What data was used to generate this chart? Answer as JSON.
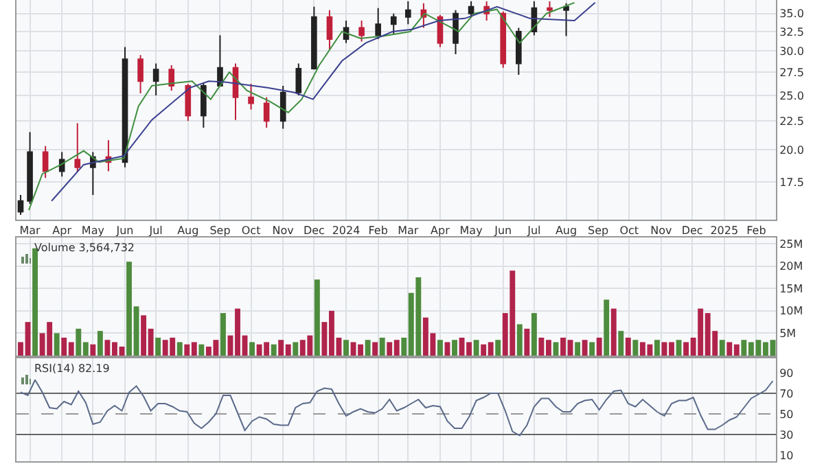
{
  "chart_data": [
    {
      "type": "candlestick",
      "xlim": [
        "2023-02-16",
        "2025-02-20"
      ],
      "ylim": [
        15.0,
        37.0
      ],
      "log": "y",
      "grid": true,
      "xticks": [
        {
          "value": "2023-03-01",
          "label": "Mar"
        },
        {
          "value": "2023-04-01",
          "label": "Apr"
        },
        {
          "value": "2023-05-01",
          "label": "May"
        },
        {
          "value": "2023-06-01",
          "label": "Jun"
        },
        {
          "value": "2023-07-01",
          "label": "Jul"
        },
        {
          "value": "2023-08-01",
          "label": "Aug"
        },
        {
          "value": "2023-09-01",
          "label": "Sep"
        },
        {
          "value": "2023-10-01",
          "label": "Oct"
        },
        {
          "value": "2023-11-01",
          "label": "Nov"
        },
        {
          "value": "2023-12-01",
          "label": "Dec"
        },
        {
          "value": "2024-01-01",
          "label": "2024"
        },
        {
          "value": "2024-02-01",
          "label": "Feb"
        },
        {
          "value": "2024-03-01",
          "label": "Mar"
        },
        {
          "value": "2024-04-01",
          "label": "Apr"
        },
        {
          "value": "2024-05-01",
          "label": "May"
        },
        {
          "value": "2024-06-01",
          "label": "Jun"
        },
        {
          "value": "2024-07-01",
          "label": "Jul"
        },
        {
          "value": "2024-08-01",
          "label": "Aug"
        },
        {
          "value": "2024-09-01",
          "label": "Sep"
        },
        {
          "value": "2024-10-01",
          "label": "Oct"
        },
        {
          "value": "2024-11-01",
          "label": "Nov"
        },
        {
          "value": "2024-12-01",
          "label": "Dec"
        },
        {
          "value": "2025-01-01",
          "label": "2025"
        },
        {
          "value": "2025-02-01",
          "label": "Feb"
        }
      ],
      "yticks": [
        {
          "value": 17.5,
          "label": "17.5"
        },
        {
          "value": 20,
          "label": "20.0"
        },
        {
          "value": 22.5,
          "label": "22.5"
        },
        {
          "value": 25,
          "label": "25.0"
        },
        {
          "value": 27.5,
          "label": "27.5"
        },
        {
          "value": 30,
          "label": "30.0"
        },
        {
          "value": 32.5,
          "label": "32.5"
        },
        {
          "value": 35,
          "label": "35.0"
        }
      ],
      "x": [
        "2023-02-20",
        "2023-03-01",
        "2023-03-16",
        "2023-04-01",
        "2023-04-16",
        "2023-05-01",
        "2023-05-16",
        "2023-06-01",
        "2023-06-16",
        "2023-07-01",
        "2023-07-16",
        "2023-08-01",
        "2023-08-16",
        "2023-09-01",
        "2023-09-16",
        "2023-10-01",
        "2023-10-16",
        "2023-11-01",
        "2023-11-16",
        "2023-12-01",
        "2023-12-16",
        "2024-01-01",
        "2024-01-16",
        "2024-02-01",
        "2024-02-16",
        "2024-03-01",
        "2024-03-16",
        "2024-04-01",
        "2024-04-16",
        "2024-05-01",
        "2024-05-16",
        "2024-06-01",
        "2024-06-16",
        "2024-07-01",
        "2024-07-16",
        "2024-08-01"
      ],
      "ohlc": [
        [
          15.5,
          16.6,
          15.3,
          16.2
        ],
        [
          16.2,
          21.5,
          16.0,
          19.8
        ],
        [
          19.8,
          20.3,
          17.8,
          18.3
        ],
        [
          18.3,
          19.8,
          17.9,
          19.2
        ],
        [
          19.2,
          22.3,
          18.3,
          18.6
        ],
        [
          18.6,
          19.8,
          16.6,
          19.4
        ],
        [
          19.4,
          20.8,
          18.3,
          19.0
        ],
        [
          19.0,
          30.5,
          18.6,
          29.0
        ],
        [
          29.0,
          29.5,
          25.2,
          26.5
        ],
        [
          26.5,
          28.5,
          25.0,
          27.8
        ],
        [
          27.8,
          28.3,
          25.5,
          26.0
        ],
        [
          26.0,
          26.2,
          22.5,
          23.0
        ],
        [
          23.0,
          26.3,
          21.9,
          26.0
        ],
        [
          26.0,
          32.0,
          26.0,
          28.0
        ],
        [
          28.0,
          28.5,
          22.6,
          24.8
        ],
        [
          24.8,
          26.2,
          23.6,
          24.2
        ],
        [
          24.2,
          24.8,
          21.9,
          22.5
        ],
        [
          22.5,
          26.0,
          21.8,
          25.3
        ],
        [
          25.3,
          28.5,
          25.0,
          27.9
        ],
        [
          27.9,
          36.0,
          27.8,
          34.5
        ],
        [
          34.5,
          35.5,
          30.2,
          31.5
        ],
        [
          31.5,
          34.0,
          31.0,
          33.0
        ],
        [
          33.0,
          34.0,
          31.2,
          32.0
        ],
        [
          32.0,
          35.8,
          31.5,
          33.5
        ],
        [
          33.5,
          35.0,
          32.2,
          34.5
        ],
        [
          34.5,
          36.8,
          33.5,
          35.5
        ],
        [
          35.5,
          36.5,
          33.0,
          34.5
        ],
        [
          34.5,
          34.8,
          30.5,
          31.0
        ],
        [
          31.0,
          35.5,
          29.6,
          35.0
        ],
        [
          35.0,
          36.8,
          34.5,
          36.0
        ],
        [
          36.0,
          36.8,
          34.0,
          35.0
        ],
        [
          35.0,
          35.3,
          28.0,
          28.5
        ],
        [
          28.5,
          33.0,
          27.2,
          32.5
        ],
        [
          32.5,
          36.8,
          32.0,
          35.8
        ],
        [
          35.8,
          36.8,
          34.5,
          35.5
        ],
        [
          35.5,
          36.5,
          31.9,
          36.0
        ]
      ],
      "colors": [
        "#222222",
        "#222222",
        "#c0203a",
        "#222222",
        "#c0203a",
        "#222222",
        "#c0203a",
        "#222222",
        "#c0203a",
        "#222222",
        "#c0203a",
        "#c0203a",
        "#222222",
        "#222222",
        "#c0203a",
        "#c0203a",
        "#c0203a",
        "#222222",
        "#222222",
        "#222222",
        "#c0203a",
        "#222222",
        "#c0203a",
        "#222222",
        "#222222",
        "#222222",
        "#c0203a",
        "#c0203a",
        "#222222",
        "#222222",
        "#c0203a",
        "#c0203a",
        "#222222",
        "#222222",
        "#c0203a",
        "#222222"
      ],
      "series": [
        {
          "type": "line",
          "color": "#3f8f3f",
          "x": [
            "2023-02-28",
            "2023-03-13",
            "2023-03-31",
            "2023-04-22",
            "2023-05-07",
            "2023-05-31",
            "2023-06-14",
            "2023-06-27",
            "2023-07-19",
            "2023-08-05",
            "2023-08-23",
            "2023-09-10",
            "2023-09-27",
            "2023-10-19",
            "2023-11-06",
            "2023-11-19",
            "2023-12-06",
            "2023-12-28",
            "2024-01-15",
            "2024-02-06",
            "2024-03-03",
            "2024-03-17",
            "2024-04-19",
            "2024-05-04",
            "2024-05-26",
            "2024-06-17",
            "2024-07-13",
            "2024-08-09"
          ],
          "values": [
            15.6,
            18.1,
            18.8,
            19.9,
            19.0,
            19.3,
            23.9,
            26.0,
            26.3,
            26.5,
            24.6,
            27.5,
            25.5,
            24.4,
            23.3,
            24.6,
            28.3,
            32.5,
            31.6,
            31.9,
            32.5,
            35.0,
            32.5,
            35.0,
            35.6,
            31.0,
            35.0,
            36.6
          ]
        },
        {
          "type": "line",
          "color": "#3a3f8f",
          "x": [
            "2023-03-22",
            "2023-04-22",
            "2023-05-31",
            "2023-06-27",
            "2023-08-03",
            "2023-08-21",
            "2023-09-07",
            "2023-10-17",
            "2023-11-12",
            "2023-11-30",
            "2023-12-28",
            "2024-01-20",
            "2024-02-15",
            "2024-03-05",
            "2024-03-31",
            "2024-04-25",
            "2024-05-26",
            "2024-06-27",
            "2024-08-09",
            "2024-08-29"
          ],
          "values": [
            16.2,
            18.8,
            19.5,
            22.6,
            25.8,
            26.5,
            26.4,
            25.8,
            25.3,
            24.6,
            28.8,
            31.0,
            32.5,
            32.8,
            34.0,
            34.3,
            36.0,
            34.3,
            34.0,
            36.6
          ]
        }
      ]
    },
    {
      "type": "bar",
      "xlim": [
        "2023-02-16",
        "2025-02-20"
      ],
      "ylim": [
        0,
        26.4
      ],
      "grid": true,
      "tick_labels": "y",
      "annotations": [
        "Volume 3,564,732"
      ],
      "xticks": [
        {
          "value": "2023-03-01",
          "label": null
        },
        {
          "value": "2023-04-01",
          "label": null
        },
        {
          "value": "2023-05-01",
          "label": null
        },
        {
          "value": "2023-06-01",
          "label": null
        },
        {
          "value": "2023-07-01",
          "label": null
        },
        {
          "value": "2023-08-01",
          "label": null
        },
        {
          "value": "2023-09-01",
          "label": null
        },
        {
          "value": "2023-10-01",
          "label": null
        },
        {
          "value": "2023-11-01",
          "label": null
        },
        {
          "value": "2023-12-01",
          "label": null
        },
        {
          "value": "2024-01-01",
          "label": null
        },
        {
          "value": "2024-02-01",
          "label": null
        },
        {
          "value": "2024-03-01",
          "label": null
        },
        {
          "value": "2024-04-01",
          "label": null
        },
        {
          "value": "2024-05-01",
          "label": null
        },
        {
          "value": "2024-06-01",
          "label": null
        },
        {
          "value": "2024-07-01",
          "label": null
        },
        {
          "value": "2024-08-01",
          "label": null
        },
        {
          "value": "2024-09-01",
          "label": null
        },
        {
          "value": "2024-10-01",
          "label": null
        },
        {
          "value": "2024-11-01",
          "label": null
        },
        {
          "value": "2024-12-01",
          "label": null
        },
        {
          "value": "2025-01-01",
          "label": null
        },
        {
          "value": "2025-02-01",
          "label": null
        }
      ],
      "yticks": [
        {
          "value": 5,
          "label": "5M"
        },
        {
          "value": 10,
          "label": "10M"
        },
        {
          "value": 15,
          "label": "15M"
        },
        {
          "value": 20,
          "label": "20M"
        },
        {
          "value": 25,
          "label": "25M"
        }
      ],
      "x": [
        "2023-02-20",
        "2023-02-27",
        "2023-03-06",
        "2023-03-13",
        "2023-03-20",
        "2023-03-27",
        "2023-04-03",
        "2023-04-10",
        "2023-04-17",
        "2023-04-24",
        "2023-05-01",
        "2023-05-08",
        "2023-05-15",
        "2023-05-22",
        "2023-05-29",
        "2023-06-05",
        "2023-06-12",
        "2023-06-19",
        "2023-06-26",
        "2023-07-03",
        "2023-07-10",
        "2023-07-17",
        "2023-07-24",
        "2023-07-31",
        "2023-08-07",
        "2023-08-14",
        "2023-08-21",
        "2023-08-28",
        "2023-09-04",
        "2023-09-11",
        "2023-09-18",
        "2023-09-25",
        "2023-10-02",
        "2023-10-09",
        "2023-10-16",
        "2023-10-23",
        "2023-10-30",
        "2023-11-06",
        "2023-11-13",
        "2023-11-20",
        "2023-11-27",
        "2023-12-04",
        "2023-12-11",
        "2023-12-18",
        "2023-12-25",
        "2024-01-01",
        "2024-01-08",
        "2024-01-15",
        "2024-01-22",
        "2024-01-29",
        "2024-02-05",
        "2024-02-12",
        "2024-02-19",
        "2024-02-26",
        "2024-03-04",
        "2024-03-11",
        "2024-03-18",
        "2024-03-25",
        "2024-04-01",
        "2024-04-08",
        "2024-04-15",
        "2024-04-22",
        "2024-04-29",
        "2024-05-06",
        "2024-05-13",
        "2024-05-20",
        "2024-05-27",
        "2024-06-03",
        "2024-06-10",
        "2024-06-17",
        "2024-06-24",
        "2024-07-01",
        "2024-07-08",
        "2024-07-15",
        "2024-07-22",
        "2024-07-29",
        "2024-08-05",
        "2024-08-12",
        "2024-08-19",
        "2024-08-26",
        "2024-09-02",
        "2024-09-09",
        "2024-09-16",
        "2024-09-23",
        "2024-09-30",
        "2024-10-07",
        "2024-10-14",
        "2024-10-21",
        "2024-10-28",
        "2024-11-04",
        "2024-11-11",
        "2024-11-18",
        "2024-11-25",
        "2024-12-02",
        "2024-12-09",
        "2024-12-16",
        "2024-12-23",
        "2024-12-30",
        "2025-01-06",
        "2025-01-13",
        "2025-01-20",
        "2025-01-27",
        "2025-02-03",
        "2025-02-10",
        "2025-02-17"
      ],
      "values": [
        3,
        7.5,
        24,
        5,
        7.5,
        5,
        4,
        3,
        6,
        3,
        2.5,
        5.5,
        3.5,
        3,
        2,
        21,
        11,
        9,
        6,
        4,
        3.5,
        4,
        3,
        2.5,
        3,
        2.5,
        2,
        3.5,
        9.5,
        4.5,
        10.5,
        4.5,
        3,
        2.5,
        3,
        2.5,
        3.5,
        2.5,
        3,
        3.5,
        4.5,
        17,
        7.5,
        10,
        4,
        3.5,
        3,
        2.5,
        3.5,
        3,
        4,
        3,
        3.5,
        4,
        14,
        17.5,
        8.5,
        5,
        3.5,
        3,
        3.5,
        4,
        3,
        3.5,
        2.5,
        3,
        3.5,
        9.5,
        19,
        7,
        6,
        9.5,
        4,
        3.5,
        3,
        4,
        3.5,
        3,
        3.5,
        3,
        4,
        12.5,
        10.5,
        5.5,
        4,
        3.5,
        3,
        2.5,
        3.5,
        3,
        3,
        3.5,
        3,
        4,
        10.5,
        9.5,
        5.5,
        3.5,
        3,
        2.5,
        3.5,
        3,
        3.5,
        3,
        3.5
      ],
      "colors": [
        "#b0244b",
        "#b0244b",
        "#4e8c3e",
        "#b0244b",
        "#b0244b",
        "#4e8c3e",
        "#b0244b",
        "#b0244b",
        "#4e8c3e",
        "#4e8c3e",
        "#b0244b",
        "#4e8c3e",
        "#b0244b",
        "#b0244b",
        "#b0244b",
        "#4e8c3e",
        "#4e8c3e",
        "#b0244b",
        "#b0244b",
        "#4e8c3e",
        "#b0244b",
        "#b0244b",
        "#4e8c3e",
        "#b0244b",
        "#b0244b",
        "#4e8c3e",
        "#b0244b",
        "#b0244b",
        "#4e8c3e",
        "#b0244b",
        "#b0244b",
        "#b0244b",
        "#4e8c3e",
        "#b0244b",
        "#b0244b",
        "#4e8c3e",
        "#b0244b",
        "#b0244b",
        "#4e8c3e",
        "#b0244b",
        "#b0244b",
        "#4e8c3e",
        "#b0244b",
        "#b0244b",
        "#b0244b",
        "#4e8c3e",
        "#b0244b",
        "#b0244b",
        "#4e8c3e",
        "#b0244b",
        "#4e8c3e",
        "#b0244b",
        "#b0244b",
        "#4e8c3e",
        "#4e8c3e",
        "#4e8c3e",
        "#b0244b",
        "#b0244b",
        "#4e8c3e",
        "#b0244b",
        "#4e8c3e",
        "#b0244b",
        "#b0244b",
        "#4e8c3e",
        "#b0244b",
        "#b0244b",
        "#4e8c3e",
        "#b0244b",
        "#b0244b",
        "#4e8c3e",
        "#b0244b",
        "#4e8c3e",
        "#b0244b",
        "#b0244b",
        "#4e8c3e",
        "#b0244b",
        "#b0244b",
        "#4e8c3e",
        "#b0244b",
        "#4e8c3e",
        "#b0244b",
        "#4e8c3e",
        "#b0244b",
        "#4e8c3e",
        "#b0244b",
        "#4e8c3e",
        "#b0244b",
        "#b0244b",
        "#4e8c3e",
        "#b0244b",
        "#b0244b",
        "#4e8c3e",
        "#b0244b",
        "#b0244b",
        "#b0244b",
        "#b0244b",
        "#b0244b",
        "#4e8c3e",
        "#b0244b",
        "#b0244b",
        "#4e8c3e",
        "#4e8c3e",
        "#4e8c3e",
        "#4e8c3e",
        "#4e8c3e"
      ]
    },
    {
      "type": "line",
      "xlim": [
        "2023-02-16",
        "2025-02-20"
      ],
      "ylim": [
        4,
        104
      ],
      "grid": "x",
      "tick_labels": "y",
      "annotations": [
        "RSI(14) 82.19"
      ],
      "xticks": [
        {
          "value": "2023-03-01",
          "label": null
        },
        {
          "value": "2023-04-01",
          "label": null
        },
        {
          "value": "2023-05-01",
          "label": null
        },
        {
          "value": "2023-06-01",
          "label": null
        },
        {
          "value": "2023-07-01",
          "label": null
        },
        {
          "value": "2023-08-01",
          "label": null
        },
        {
          "value": "2023-09-01",
          "label": null
        },
        {
          "value": "2023-10-01",
          "label": null
        },
        {
          "value": "2023-11-01",
          "label": null
        },
        {
          "value": "2023-12-01",
          "label": null
        },
        {
          "value": "2024-01-01",
          "label": null
        },
        {
          "value": "2024-02-01",
          "label": null
        },
        {
          "value": "2024-03-01",
          "label": null
        },
        {
          "value": "2024-04-01",
          "label": null
        },
        {
          "value": "2024-05-01",
          "label": null
        },
        {
          "value": "2024-06-01",
          "label": null
        },
        {
          "value": "2024-07-01",
          "label": null
        },
        {
          "value": "2024-08-01",
          "label": null
        },
        {
          "value": "2024-09-01",
          "label": null
        },
        {
          "value": "2024-10-01",
          "label": null
        },
        {
          "value": "2024-11-01",
          "label": null
        },
        {
          "value": "2024-12-01",
          "label": null
        },
        {
          "value": "2025-01-01",
          "label": null
        },
        {
          "value": "2025-02-01",
          "label": null
        }
      ],
      "yticks": [
        10,
        30,
        50,
        70,
        90
      ],
      "ref_lines": [
        {
          "axis": "y",
          "value": 70,
          "color": "#666666",
          "line_style": "solid"
        },
        {
          "axis": "y",
          "value": 50,
          "color": "#999999",
          "line_style": "dashed"
        },
        {
          "axis": "y",
          "value": 30,
          "color": "#666666",
          "line_style": "solid"
        }
      ],
      "x": [
        "2023-02-20",
        "2023-02-27",
        "2023-03-06",
        "2023-03-13",
        "2023-03-20",
        "2023-03-27",
        "2023-04-03",
        "2023-04-10",
        "2023-04-17",
        "2023-04-24",
        "2023-05-01",
        "2023-05-08",
        "2023-05-15",
        "2023-05-22",
        "2023-05-29",
        "2023-06-05",
        "2023-06-12",
        "2023-06-19",
        "2023-06-26",
        "2023-07-03",
        "2023-07-10",
        "2023-07-17",
        "2023-07-24",
        "2023-07-31",
        "2023-08-07",
        "2023-08-14",
        "2023-08-21",
        "2023-08-28",
        "2023-09-04",
        "2023-09-11",
        "2023-09-18",
        "2023-09-25",
        "2023-10-02",
        "2023-10-09",
        "2023-10-16",
        "2023-10-23",
        "2023-10-30",
        "2023-11-06",
        "2023-11-13",
        "2023-11-20",
        "2023-11-27",
        "2023-12-04",
        "2023-12-11",
        "2023-12-18",
        "2023-12-25",
        "2024-01-01",
        "2024-01-08",
        "2024-01-15",
        "2024-01-22",
        "2024-01-29",
        "2024-02-05",
        "2024-02-12",
        "2024-02-19",
        "2024-02-26",
        "2024-03-04",
        "2024-03-11",
        "2024-03-18",
        "2024-03-25",
        "2024-04-01",
        "2024-04-08",
        "2024-04-15",
        "2024-04-22",
        "2024-04-29",
        "2024-05-06",
        "2024-05-13",
        "2024-05-20",
        "2024-05-27",
        "2024-06-03",
        "2024-06-10",
        "2024-06-17",
        "2024-06-24",
        "2024-07-01",
        "2024-07-08",
        "2024-07-15",
        "2024-07-22",
        "2024-07-29",
        "2024-08-05",
        "2024-08-12",
        "2024-08-19",
        "2024-08-26",
        "2024-09-02",
        "2024-09-09",
        "2024-09-16",
        "2024-09-23",
        "2024-09-30",
        "2024-10-07",
        "2024-10-14",
        "2024-10-21",
        "2024-10-28",
        "2024-11-04",
        "2024-11-11",
        "2024-11-18",
        "2024-11-25",
        "2024-12-02",
        "2024-12-09",
        "2024-12-16",
        "2024-12-23",
        "2024-12-30",
        "2025-01-06",
        "2025-01-13",
        "2025-01-20",
        "2025-01-27",
        "2025-02-03",
        "2025-02-10",
        "2025-02-17"
      ],
      "series": [
        {
          "color": "#5a6a8a",
          "values": [
            71,
            68,
            83,
            71,
            56,
            55,
            62,
            59,
            72,
            61,
            40,
            42,
            53,
            58,
            53,
            71,
            77,
            67,
            53,
            60,
            60,
            57,
            53,
            52,
            41,
            36,
            42,
            50,
            68,
            68,
            51,
            34,
            43,
            47,
            45,
            40,
            39,
            39,
            56,
            60,
            61,
            72,
            75,
            74,
            60,
            48,
            52,
            55,
            52,
            51,
            55,
            64,
            53,
            56,
            60,
            64,
            56,
            58,
            57,
            43,
            36,
            36,
            47,
            63,
            66,
            70,
            70,
            53,
            33,
            29,
            39,
            57,
            65,
            65,
            57,
            52,
            52,
            60,
            63,
            64,
            54,
            64,
            72,
            73,
            60,
            57,
            64,
            58,
            52,
            48,
            60,
            63,
            63,
            66,
            49,
            35,
            35,
            39,
            44,
            47,
            56,
            65,
            69,
            73,
            82
          ]
        }
      ]
    }
  ]
}
